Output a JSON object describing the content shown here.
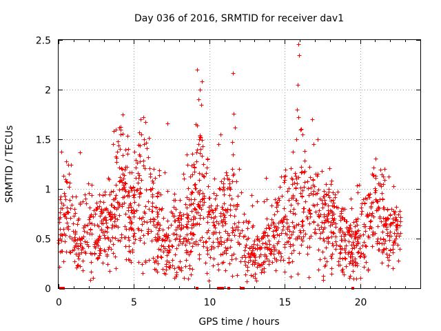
{
  "chart_data": {
    "type": "scatter",
    "title": "Day 036 of 2016, SRMTID for receiver dav1",
    "xlabel": "GPS time / hours",
    "ylabel": "SRMTID / TECUs",
    "xlim": [
      0,
      24
    ],
    "ylim": [
      0,
      2.5
    ],
    "grid": true,
    "x_ticks": [
      0,
      5,
      10,
      15,
      20
    ],
    "x_tick_labels": [
      "0",
      "5",
      "10",
      "15",
      "20"
    ],
    "y_ticks": [
      0,
      0.5,
      1,
      1.5,
      2,
      2.5
    ],
    "y_tick_labels": [
      "0",
      "0.5",
      "1",
      "1.5",
      "2",
      "2.5"
    ],
    "marker": "plus",
    "marker_color": "#ff0000",
    "x_range_hours": [
      0,
      22.7
    ],
    "baseline_profile": [
      [
        0.0,
        0.65
      ],
      [
        0.6,
        0.75
      ],
      [
        1.2,
        0.45
      ],
      [
        2.0,
        0.6
      ],
      [
        2.5,
        0.5
      ],
      [
        3.0,
        0.65
      ],
      [
        3.7,
        0.8
      ],
      [
        4.2,
        1.05
      ],
      [
        4.7,
        0.75
      ],
      [
        5.3,
        0.95
      ],
      [
        5.8,
        0.85
      ],
      [
        6.5,
        0.6
      ],
      [
        7.2,
        0.45
      ],
      [
        8.0,
        0.55
      ],
      [
        8.7,
        0.7
      ],
      [
        9.3,
        1.0
      ],
      [
        9.8,
        0.7
      ],
      [
        10.5,
        0.55
      ],
      [
        11.2,
        0.7
      ],
      [
        11.7,
        0.8
      ],
      [
        12.3,
        0.45
      ],
      [
        12.8,
        0.3
      ],
      [
        13.4,
        0.35
      ],
      [
        14.0,
        0.45
      ],
      [
        14.6,
        0.55
      ],
      [
        15.2,
        0.65
      ],
      [
        15.8,
        0.95
      ],
      [
        16.3,
        0.85
      ],
      [
        16.9,
        0.8
      ],
      [
        17.5,
        0.7
      ],
      [
        18.2,
        0.65
      ],
      [
        18.8,
        0.5
      ],
      [
        19.5,
        0.4
      ],
      [
        20.2,
        0.55
      ],
      [
        20.8,
        0.75
      ],
      [
        21.3,
        0.8
      ],
      [
        21.9,
        0.5
      ],
      [
        22.7,
        0.5
      ]
    ],
    "outliers": [
      [
        9.2,
        2.2
      ],
      [
        9.5,
        2.08
      ],
      [
        9.35,
        2.0
      ],
      [
        9.45,
        1.85
      ],
      [
        9.1,
        1.65
      ],
      [
        9.3,
        1.9
      ],
      [
        11.55,
        2.17
      ],
      [
        11.6,
        1.76
      ],
      [
        11.7,
        1.62
      ],
      [
        11.5,
        1.47
      ],
      [
        10.6,
        1.45
      ],
      [
        10.75,
        1.55
      ],
      [
        15.9,
        2.46
      ],
      [
        15.95,
        2.35
      ],
      [
        15.85,
        2.05
      ],
      [
        15.8,
        1.8
      ],
      [
        15.9,
        1.72
      ],
      [
        15.75,
        1.5
      ],
      [
        16.05,
        1.6
      ],
      [
        16.2,
        1.55
      ],
      [
        16.8,
        1.7
      ],
      [
        16.9,
        1.45
      ],
      [
        7.2,
        1.66
      ],
      [
        3.8,
        1.6
      ],
      [
        4.1,
        1.55
      ],
      [
        5.6,
        1.72
      ],
      [
        5.5,
        1.55
      ],
      [
        1.4,
        1.37
      ],
      [
        0.5,
        1.28
      ],
      [
        20.8,
        1.15
      ],
      [
        17.2,
        1.5
      ],
      [
        3.6,
        1.45
      ],
      [
        4.6,
        1.4
      ],
      [
        6.3,
        1.2
      ],
      [
        0.8,
        1.24
      ],
      [
        8.5,
        1.35
      ]
    ],
    "gap_markers_x": [
      0.15,
      0.3,
      9.2,
      10.6,
      10.75,
      10.9,
      11.3,
      12.1,
      12.25,
      19.5
    ]
  }
}
